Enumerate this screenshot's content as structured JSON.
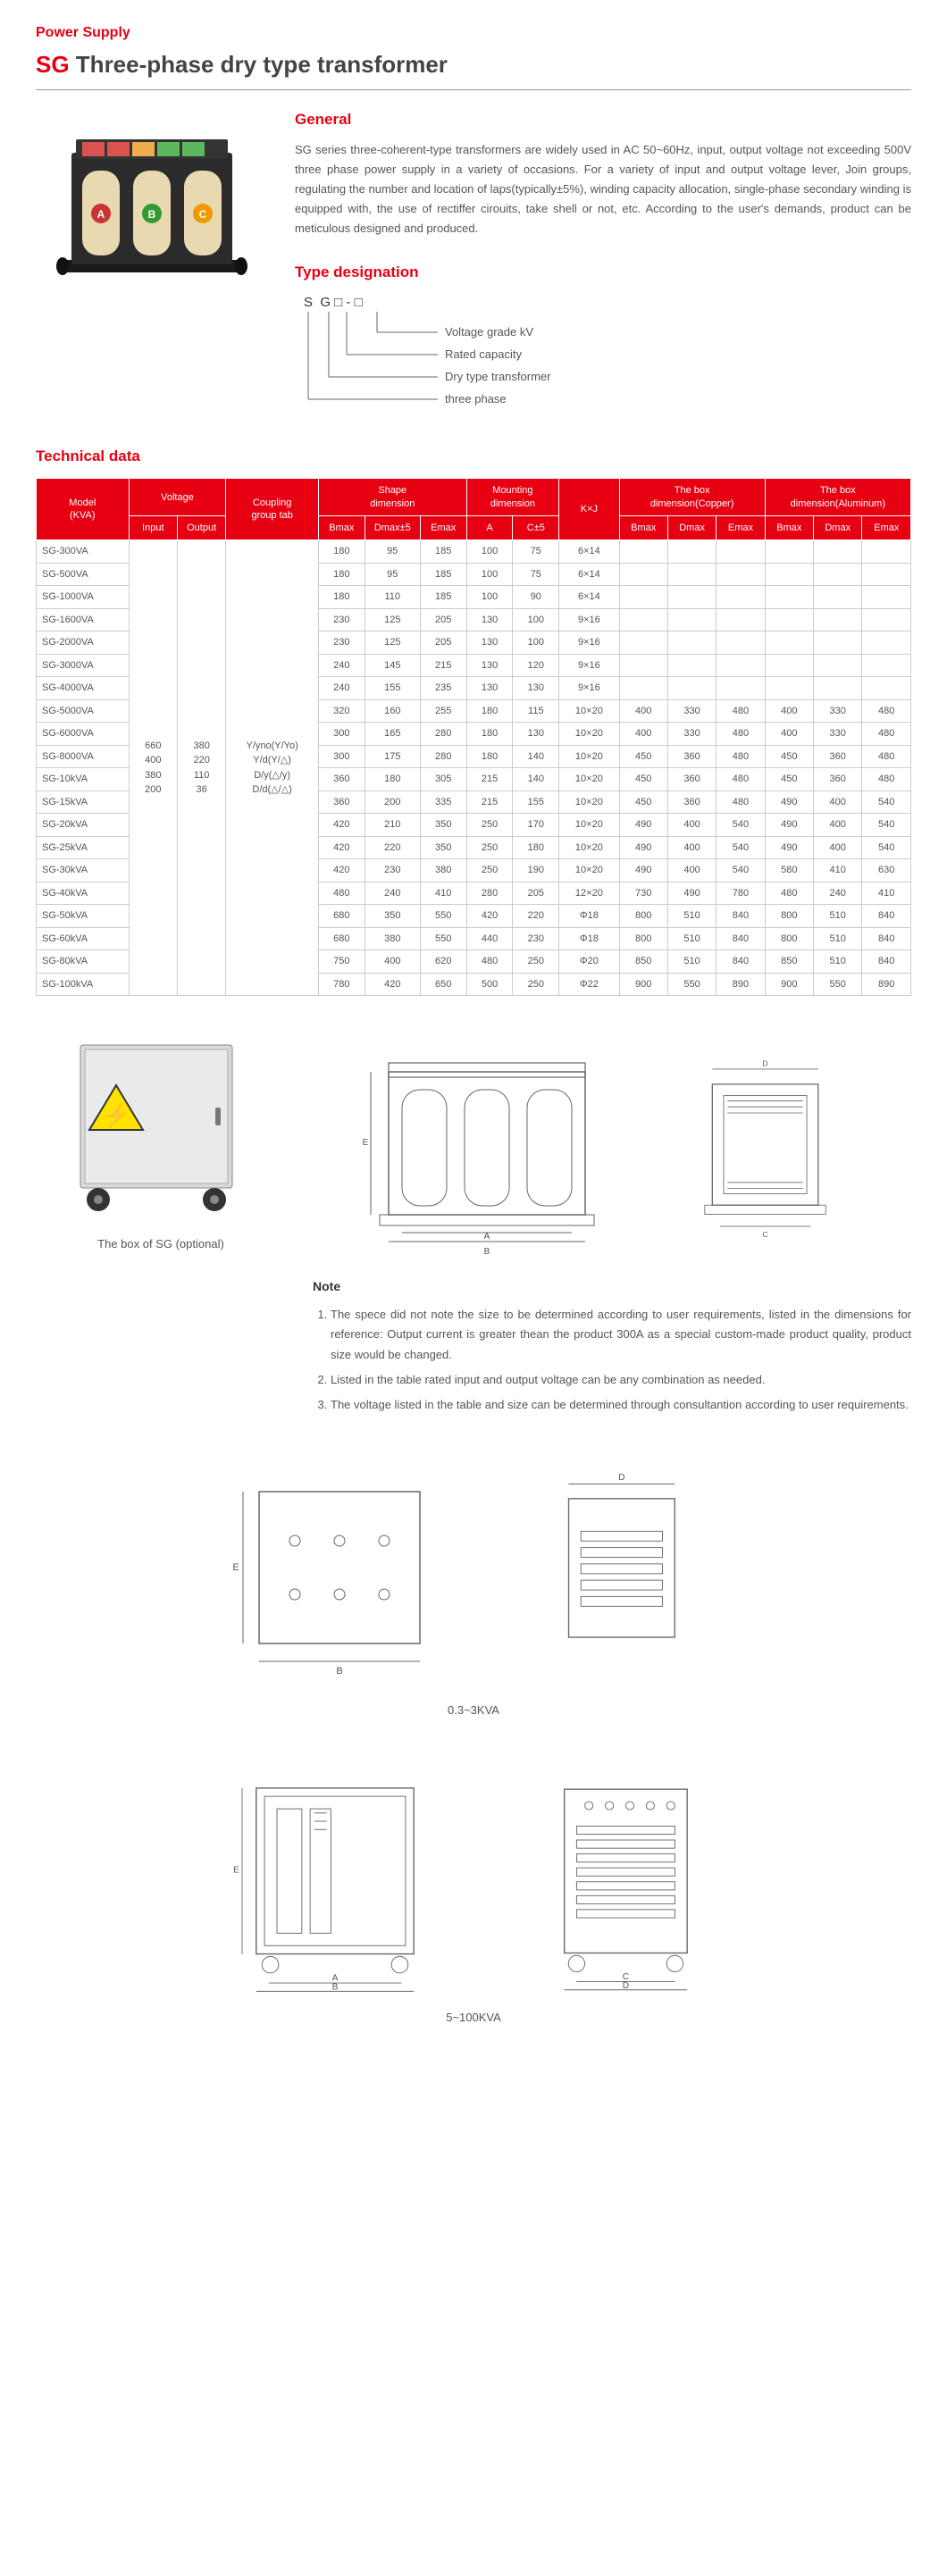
{
  "header": {
    "category": "Power Supply",
    "title_prefix": "SG",
    "title_rest": " Three-phase  dry type transformer"
  },
  "general": {
    "heading": "General",
    "text": "SG series three-coherent-type transformers are widely used in AC 50~60Hz, input, output voltage not exceeding 500V three phase power supply in a variety of occasions. For a variety of input and output voltage lever, Join groups, regulating the number and location of laps(typically±5%), winding capacity allocation, single-phase secondary winding is equipped with, the use of rectiffer cirouits, take shell or not, etc. According to the user's demands, product can be meticulous designed and produced."
  },
  "type_designation": {
    "heading": "Type designation",
    "code": "S  G □ - □",
    "labels": [
      "Voltage grade kV",
      "Rated capacity",
      "Dry type transformer",
      "three phase"
    ]
  },
  "tech_data": {
    "heading": "Technical data",
    "header_groups": {
      "model": "Model\n(KVA)",
      "voltage": "Voltage",
      "voltage_sub": [
        "Input",
        "Output"
      ],
      "coupling": "Coupling\ngroup tab",
      "shape": "Shape\ndimension",
      "shape_sub": [
        "Bmax",
        "Dmax±5",
        "Emax"
      ],
      "mounting": "Mounting\ndimension",
      "mounting_sub": [
        "A",
        "C±5"
      ],
      "kxj": "K×J",
      "box_cu": "The box\ndimension(Copper)",
      "box_al": "The box\ndimension(Aluminum)",
      "box_sub": [
        "Bmax",
        "Dmax",
        "Emax"
      ]
    },
    "voltage_input": [
      "660",
      "400",
      "380",
      "200"
    ],
    "voltage_output": [
      "380",
      "220",
      "110",
      "36"
    ],
    "coupling_values": [
      "Y/yno(Y/Yo)",
      "Y/d(Y/△)",
      "D/y(△/y)",
      "D/d(△/△)"
    ],
    "rows": [
      {
        "model": "SG-300VA",
        "d": [
          "180",
          "95",
          "185",
          "100",
          "75",
          "6×14",
          "",
          "",
          "",
          "",
          "",
          ""
        ]
      },
      {
        "model": "SG-500VA",
        "d": [
          "180",
          "95",
          "185",
          "100",
          "75",
          "6×14",
          "",
          "",
          "",
          "",
          "",
          ""
        ]
      },
      {
        "model": "SG-1000VA",
        "d": [
          "180",
          "110",
          "185",
          "100",
          "90",
          "6×14",
          "",
          "",
          "",
          "",
          "",
          ""
        ]
      },
      {
        "model": "SG-1600VA",
        "d": [
          "230",
          "125",
          "205",
          "130",
          "100",
          "9×16",
          "",
          "",
          "",
          "",
          "",
          ""
        ]
      },
      {
        "model": "SG-2000VA",
        "d": [
          "230",
          "125",
          "205",
          "130",
          "100",
          "9×16",
          "",
          "",
          "",
          "",
          "",
          ""
        ]
      },
      {
        "model": "SG-3000VA",
        "d": [
          "240",
          "145",
          "215",
          "130",
          "120",
          "9×16",
          "",
          "",
          "",
          "",
          "",
          ""
        ]
      },
      {
        "model": "SG-4000VA",
        "d": [
          "240",
          "155",
          "235",
          "130",
          "130",
          "9×16",
          "",
          "",
          "",
          "",
          "",
          ""
        ]
      },
      {
        "model": "SG-5000VA",
        "d": [
          "320",
          "160",
          "255",
          "180",
          "115",
          "10×20",
          "400",
          "330",
          "480",
          "400",
          "330",
          "480"
        ]
      },
      {
        "model": "SG-6000VA",
        "d": [
          "300",
          "165",
          "280",
          "180",
          "130",
          "10×20",
          "400",
          "330",
          "480",
          "400",
          "330",
          "480"
        ]
      },
      {
        "model": "SG-8000VA",
        "d": [
          "300",
          "175",
          "280",
          "180",
          "140",
          "10×20",
          "450",
          "360",
          "480",
          "450",
          "360",
          "480"
        ]
      },
      {
        "model": "SG-10kVA",
        "d": [
          "360",
          "180",
          "305",
          "215",
          "140",
          "10×20",
          "450",
          "360",
          "480",
          "450",
          "360",
          "480"
        ]
      },
      {
        "model": "SG-15kVA",
        "d": [
          "360",
          "200",
          "335",
          "215",
          "155",
          "10×20",
          "450",
          "360",
          "480",
          "490",
          "400",
          "540"
        ]
      },
      {
        "model": "SG-20kVA",
        "d": [
          "420",
          "210",
          "350",
          "250",
          "170",
          "10×20",
          "490",
          "400",
          "540",
          "490",
          "400",
          "540"
        ]
      },
      {
        "model": "SG-25kVA",
        "d": [
          "420",
          "220",
          "350",
          "250",
          "180",
          "10×20",
          "490",
          "400",
          "540",
          "490",
          "400",
          "540"
        ]
      },
      {
        "model": "SG-30kVA",
        "d": [
          "420",
          "230",
          "380",
          "250",
          "190",
          "10×20",
          "490",
          "400",
          "540",
          "580",
          "410",
          "630"
        ]
      },
      {
        "model": "SG-40kVA",
        "d": [
          "480",
          "240",
          "410",
          "280",
          "205",
          "12×20",
          "730",
          "490",
          "780",
          "480",
          "240",
          "410"
        ]
      },
      {
        "model": "SG-50kVA",
        "d": [
          "680",
          "350",
          "550",
          "420",
          "220",
          "Φ18",
          "800",
          "510",
          "840",
          "800",
          "510",
          "840"
        ]
      },
      {
        "model": "SG-60kVA",
        "d": [
          "680",
          "380",
          "550",
          "440",
          "230",
          "Φ18",
          "800",
          "510",
          "840",
          "800",
          "510",
          "840"
        ]
      },
      {
        "model": "SG-80kVA",
        "d": [
          "750",
          "400",
          "620",
          "480",
          "250",
          "Φ20",
          "850",
          "510",
          "840",
          "850",
          "510",
          "840"
        ]
      },
      {
        "model": "SG-100kVA",
        "d": [
          "780",
          "420",
          "650",
          "500",
          "250",
          "Φ22",
          "900",
          "550",
          "890",
          "900",
          "550",
          "890"
        ]
      }
    ]
  },
  "box_caption": "The box of SG (optional)",
  "note": {
    "heading": "Note",
    "items": [
      "The spece did not note the size to be determined according to user requirements, listed in the dimensions for reference: Output current is greater thean the product 300A as a special custom-made product quality, product size would be changed.",
      "Listed in the table rated input and output voltage can be any combination as needed.",
      "The voltage listed in the table and size can be determined through consultantion according to user requirements."
    ]
  },
  "dim_labels": {
    "small": "0.3~3KVA",
    "large": "5~100KVA"
  },
  "colors": {
    "accent": "#e60012",
    "text": "#555555",
    "border": "#cccccc"
  }
}
